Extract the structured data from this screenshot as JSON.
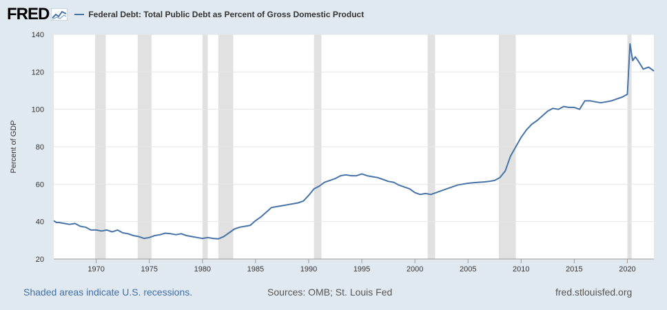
{
  "header": {
    "logo_text": "FRED",
    "legend_label": "Federal Debt: Total Public Debt as Percent of Gross Domestic Product"
  },
  "footer": {
    "recession_note": "Shaded areas indicate U.S. recessions.",
    "sources": "Sources: OMB; St. Louis Fed",
    "site": "fred.stlouisfed.org"
  },
  "colors": {
    "line": "#4572a7",
    "recession": "#e1e1e1",
    "plot_bg": "#ffffff",
    "page_bg": "#e1e9f0"
  },
  "chart_data": {
    "type": "line",
    "ylabel": "Percent of GDP",
    "ylim": [
      20,
      140
    ],
    "xlim": [
      1966.0,
      2022.5
    ],
    "yticks": [
      20,
      40,
      60,
      80,
      100,
      120,
      140
    ],
    "xticks": [
      1970,
      1975,
      1980,
      1985,
      1990,
      1995,
      2000,
      2005,
      2010,
      2015,
      2020
    ],
    "grid": "horizontal",
    "recessions": [
      [
        1969.9,
        1970.9
      ],
      [
        1973.9,
        1975.2
      ],
      [
        1980.0,
        1980.5
      ],
      [
        1981.5,
        1982.9
      ],
      [
        1990.5,
        1991.2
      ],
      [
        2001.2,
        2001.9
      ],
      [
        2007.9,
        2009.5
      ],
      [
        2020.0,
        2020.4
      ]
    ],
    "series": [
      {
        "name": "Federal Debt: Total Public Debt as Percent of Gross Domestic Product",
        "x": [
          1966.0,
          1966.25,
          1966.5,
          1967.0,
          1967.5,
          1968.0,
          1968.5,
          1969.0,
          1969.5,
          1970.0,
          1970.5,
          1971.0,
          1971.5,
          1972.0,
          1972.5,
          1973.0,
          1973.5,
          1974.0,
          1974.5,
          1975.0,
          1975.5,
          1976.0,
          1976.5,
          1977.0,
          1977.5,
          1978.0,
          1978.5,
          1979.0,
          1979.5,
          1980.0,
          1980.5,
          1981.0,
          1981.5,
          1982.0,
          1982.5,
          1983.0,
          1983.5,
          1984.0,
          1984.5,
          1985.0,
          1985.5,
          1986.0,
          1986.5,
          1987.0,
          1987.5,
          1988.0,
          1988.5,
          1989.0,
          1989.5,
          1990.0,
          1990.5,
          1991.0,
          1991.5,
          1992.0,
          1992.5,
          1993.0,
          1993.5,
          1994.0,
          1994.5,
          1995.0,
          1995.5,
          1996.0,
          1996.5,
          1997.0,
          1997.5,
          1998.0,
          1998.5,
          1999.0,
          1999.5,
          2000.0,
          2000.5,
          2001.0,
          2001.5,
          2002.0,
          2002.5,
          2003.0,
          2003.5,
          2004.0,
          2004.5,
          2005.0,
          2005.5,
          2006.0,
          2006.5,
          2007.0,
          2007.5,
          2008.0,
          2008.5,
          2009.0,
          2009.5,
          2010.0,
          2010.5,
          2011.0,
          2011.5,
          2012.0,
          2012.5,
          2013.0,
          2013.5,
          2014.0,
          2014.5,
          2015.0,
          2015.5,
          2016.0,
          2016.5,
          2017.0,
          2017.5,
          2018.0,
          2018.5,
          2019.0,
          2019.5,
          2020.0,
          2020.25,
          2020.5,
          2020.75,
          2021.0,
          2021.5,
          2022.0,
          2022.5
        ],
        "values": [
          40.5,
          39.5,
          39.5,
          39.0,
          38.5,
          39.0,
          37.5,
          37.0,
          35.5,
          35.5,
          35.0,
          35.5,
          34.5,
          35.5,
          34.0,
          33.5,
          32.5,
          32.0,
          31.0,
          31.5,
          32.5,
          33.0,
          33.8,
          33.5,
          33.0,
          33.5,
          32.5,
          32.0,
          31.5,
          31.0,
          31.5,
          31.0,
          30.8,
          32.0,
          34.0,
          36.0,
          37.0,
          37.5,
          38.0,
          40.5,
          42.5,
          45.0,
          47.5,
          48.0,
          48.5,
          49.0,
          49.5,
          50.0,
          51.0,
          54.0,
          57.5,
          59.0,
          61.0,
          62.0,
          63.0,
          64.5,
          65.0,
          64.5,
          64.5,
          65.5,
          64.5,
          64.0,
          63.5,
          62.5,
          61.5,
          61.0,
          59.5,
          58.5,
          57.5,
          55.5,
          54.5,
          55.0,
          54.5,
          55.5,
          56.5,
          57.5,
          58.5,
          59.5,
          60.0,
          60.5,
          60.8,
          61.0,
          61.2,
          61.5,
          62.0,
          63.5,
          67.0,
          75.0,
          80.0,
          85.0,
          89.0,
          92.0,
          94.0,
          96.5,
          99.0,
          100.5,
          100.0,
          101.5,
          101.0,
          101.0,
          100.0,
          104.5,
          104.5,
          104.0,
          103.5,
          104.0,
          104.5,
          105.5,
          106.5,
          108.0,
          135.0,
          126.0,
          128.0,
          126.0,
          121.5,
          122.5,
          120.5
        ]
      }
    ]
  }
}
